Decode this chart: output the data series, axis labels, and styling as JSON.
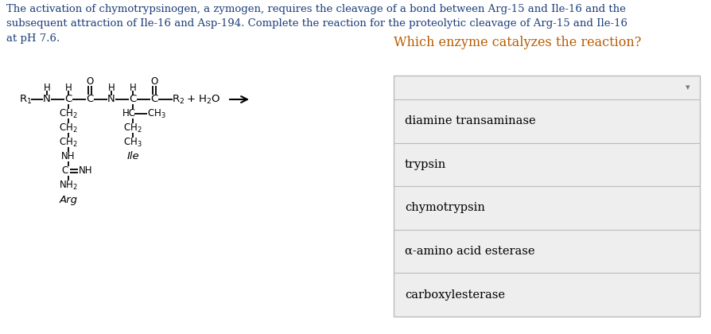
{
  "title_text": "The activation of chymotrypsinogen, a zymogen, requires the cleavage of a bond between Arg-15 and Ile-16 and the\nsubsequent attraction of Ile-16 and Asp-194. Complete the reaction for the proteolytic cleavage of Arg-15 and Ile-16\nat pH 7.6.",
  "question_text": "Which enzyme catalyzes the reaction?",
  "choices": [
    "diamine transaminase",
    "trypsin",
    "chymotrypsin",
    "α-amino acid esterase",
    "carboxylesterase"
  ],
  "bg_color": "#ffffff",
  "text_color": "#000000",
  "title_color": "#1c3f7a",
  "question_color": "#b85c00",
  "choice_box_bg": "#eeeeee",
  "choice_box_border": "#bbbbbb",
  "title_fontsize": 9.5,
  "choice_fontsize": 10.5,
  "question_fontsize": 11.5,
  "chem_fs": 9.5,
  "chem_small_fs": 8.5
}
